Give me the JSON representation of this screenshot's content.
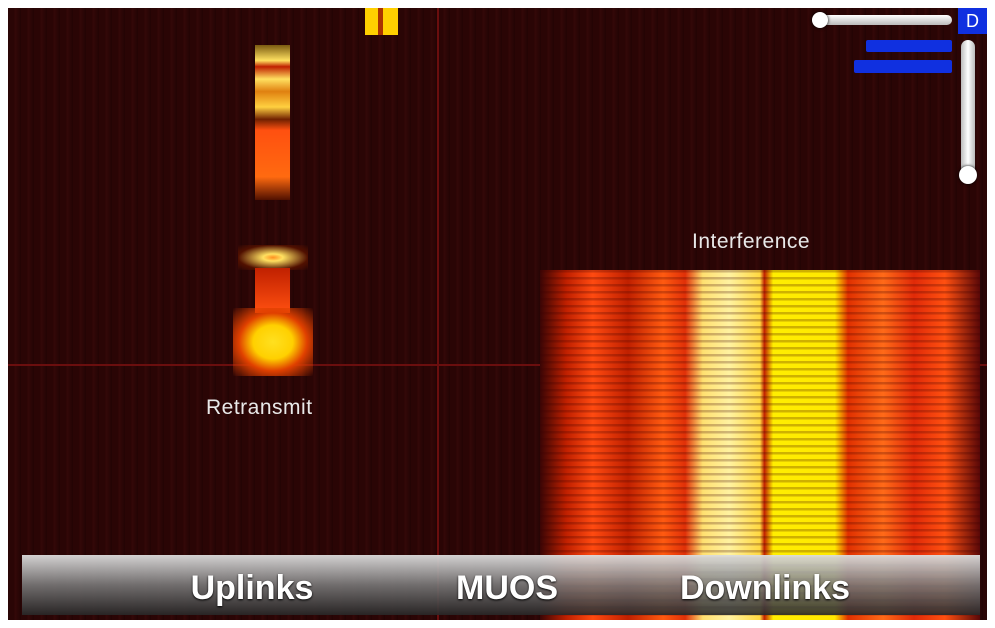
{
  "labels": {
    "interference": "Interference",
    "retransmit": "Retransmit"
  },
  "tabs": [
    "Uplinks",
    "MUOS",
    "Downlinks"
  ],
  "controls": {
    "mode_button": "D"
  }
}
